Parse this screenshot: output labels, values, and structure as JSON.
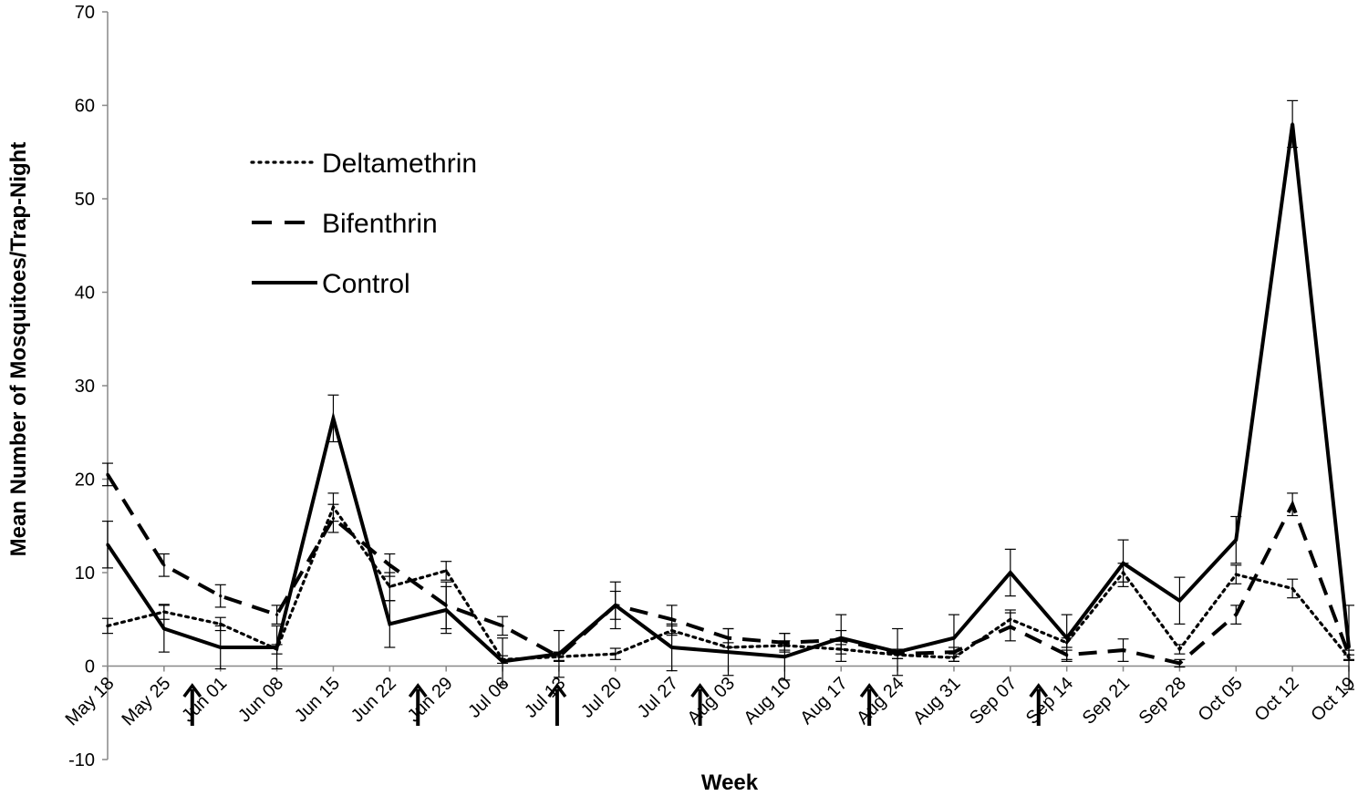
{
  "chart_data": {
    "type": "line",
    "xlabel": "Week",
    "ylabel": "Mean Number of Mosquitoes/Trap-Night",
    "ylim": [
      -10,
      70
    ],
    "yticks": [
      -10,
      0,
      10,
      20,
      30,
      40,
      50,
      60,
      70
    ],
    "categories": [
      "May 18",
      "May 25",
      "Jun 01",
      "Jun 08",
      "Jun 15",
      "Jun 22",
      "Jun 29",
      "Jul 06",
      "Jul 13",
      "Jul 20",
      "Jul 27",
      "Aug 03",
      "Aug 10",
      "Aug 17",
      "Aug 24",
      "Aug 31",
      "Sep 07",
      "Sep 14",
      "Sep 21",
      "Sep 28",
      "Oct 05",
      "Oct 12",
      "Oct 19"
    ],
    "grid": false,
    "legend_position": "top-left",
    "series": [
      {
        "name": "Deltamethrin",
        "style": "dotted",
        "color": "#000000",
        "x": [
          "May 18",
          "May 25",
          "Jun 01",
          "Jun 08",
          "Jun 15",
          "Jun 22",
          "Jun 29",
          "Jul 06",
          "Jul 13",
          "Jul 20",
          "Jul 27",
          "Aug 03",
          "Aug 10",
          "Aug 17",
          "Aug 24",
          "Aug 31",
          "Sep 07",
          "Sep 14",
          "Sep 21",
          "Sep 28",
          "Oct 05",
          "Oct 12",
          "Oct 19"
        ],
        "values": [
          4.3,
          5.8,
          4.5,
          1.8,
          17.0,
          8.5,
          10.2,
          0.7,
          1.0,
          1.3,
          3.8,
          2.0,
          2.2,
          1.8,
          1.2,
          0.9,
          5.0,
          2.5,
          10.0,
          1.8,
          9.8,
          8.3,
          0.9
        ],
        "errors": [
          0.8,
          0.8,
          0.7,
          0.5,
          1.5,
          1.5,
          1.0,
          0.4,
          0.4,
          0.6,
          0.5,
          0.5,
          0.5,
          0.5,
          0.4,
          0.4,
          1.0,
          0.5,
          1.0,
          0.5,
          1.0,
          1.0,
          0.3
        ]
      },
      {
        "name": "Bifenthrin",
        "style": "dashed",
        "color": "#000000",
        "x": [
          "May 18",
          "May 25",
          "Jun 01",
          "Jun 08",
          "Jun 15",
          "Jun 22",
          "Jun 29",
          "Jul 06",
          "Jul 13",
          "Jul 20",
          "Jul 27",
          "Aug 03",
          "Aug 10",
          "Aug 17",
          "Aug 24",
          "Aug 31",
          "Sep 07",
          "Sep 14",
          "Sep 21",
          "Sep 28",
          "Oct 05",
          "Oct 12",
          "Oct 19"
        ],
        "values": [
          20.5,
          10.8,
          7.5,
          5.5,
          15.8,
          10.8,
          6.5,
          4.3,
          1.0,
          6.5,
          5.0,
          3.0,
          2.5,
          2.8,
          1.3,
          1.5,
          4.2,
          1.2,
          1.7,
          0.3,
          5.5,
          17.3,
          1.2
        ],
        "errors": [
          1.2,
          1.2,
          1.2,
          1.0,
          1.5,
          1.2,
          2.5,
          1.0,
          0.5,
          1.5,
          1.5,
          1.0,
          1.0,
          1.0,
          0.5,
          0.5,
          1.5,
          0.5,
          1.2,
          0.4,
          1.0,
          1.2,
          0.5
        ]
      },
      {
        "name": "Control",
        "style": "solid",
        "color": "#000000",
        "x": [
          "May 18",
          "May 25",
          "Jun 01",
          "Jun 08",
          "Jun 15",
          "Jun 22",
          "Jun 29",
          "Jul 06",
          "Jul 13",
          "Jul 20",
          "Jul 27",
          "Aug 03",
          "Aug 10",
          "Aug 17",
          "Aug 24",
          "Aug 31",
          "Sep 07",
          "Sep 14",
          "Sep 21",
          "Sep 28",
          "Oct 05",
          "Oct 12",
          "Oct 19"
        ],
        "values": [
          13.0,
          4.0,
          2.0,
          2.0,
          26.5,
          4.5,
          6.0,
          0.5,
          1.3,
          6.5,
          2.0,
          1.5,
          1.0,
          3.0,
          1.5,
          3.0,
          10.0,
          3.0,
          11.0,
          7.0,
          13.5,
          58.0,
          2.0
        ],
        "errors": [
          2.5,
          2.5,
          2.3,
          2.3,
          2.5,
          2.5,
          2.5,
          2.5,
          2.5,
          2.5,
          2.5,
          2.5,
          2.5,
          2.5,
          2.5,
          2.5,
          2.5,
          2.5,
          2.5,
          2.5,
          2.5,
          2.5,
          4.5
        ]
      }
    ],
    "annotations": {
      "type": "arrow-up",
      "positions": [
        "May 25",
        "Jun 22",
        "Jul 13",
        "Jul 27",
        "Aug 24",
        "Sep 07"
      ]
    }
  }
}
